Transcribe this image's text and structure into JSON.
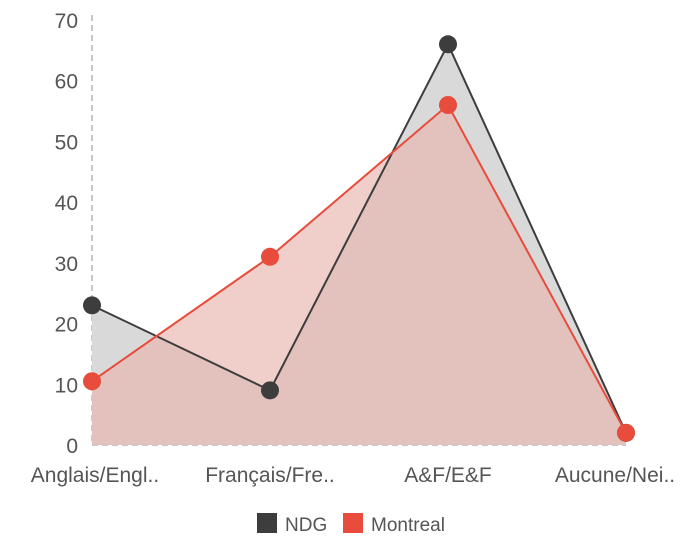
{
  "chart_data": {
    "type": "area",
    "categories": [
      "Anglais/Engl..",
      "Français/Fre..",
      "A&F/E&F",
      "Aucune/Nei.."
    ],
    "series": [
      {
        "name": "NDG",
        "values": [
          23,
          9,
          66,
          2
        ],
        "color": "#3d3d3d",
        "fill": "#d9d9d9"
      },
      {
        "name": "Montreal",
        "values": [
          10.5,
          31,
          56,
          2
        ],
        "color": "#e74c3c",
        "fill": "#e8b4ad"
      }
    ],
    "ylim": [
      0,
      70
    ],
    "yticks": [
      0,
      10,
      20,
      30,
      40,
      50,
      60,
      70
    ],
    "grid": false,
    "legend_position": "bottom-center"
  }
}
